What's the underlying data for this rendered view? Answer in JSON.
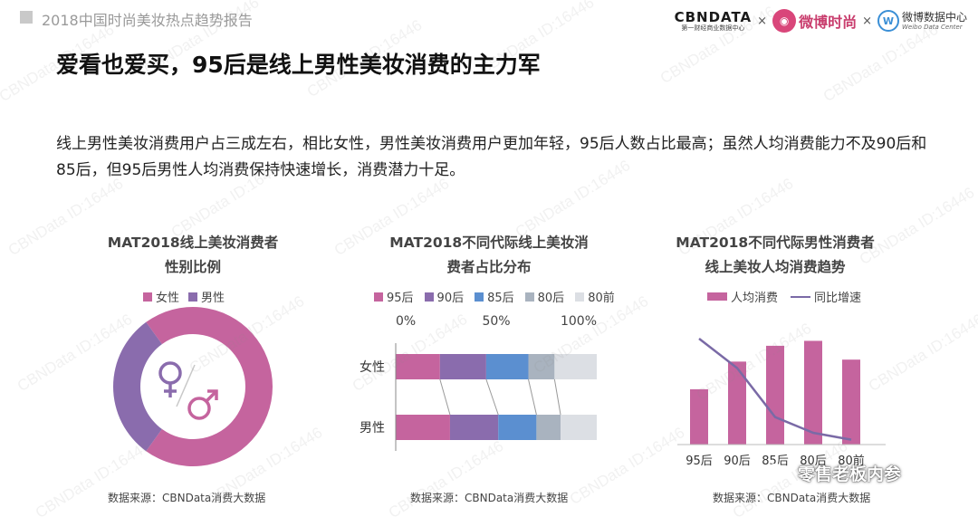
{
  "header": {
    "report_title": "2018中国时尚美妆热点趋势报告",
    "logo_cbn_main": "CBNDATA",
    "logo_cbn_sub": "第一财经商业数据中心",
    "logo_sep": "×",
    "logo_weibo_fashion": "微博时尚",
    "logo_weibo_data_main": "微博数据中心",
    "logo_weibo_data_sub": "Weibo Data Center"
  },
  "title": "爱看也爱买，95后是线上男性美妆消费的主力军",
  "summary": "线上男性美妆消费用户占三成左右，相比女性，男性美妆消费用户更加年轻，95后人数占比最高；虽然人均消费能力不及90后和85后，但95后男性人均消费保持快速增长，消费潜力十足。",
  "watermark_text": "CBNData ID:16446",
  "wechat_tag": "零售老板内参",
  "colors": {
    "female": "#c5649e",
    "male": "#8a6cad",
    "g95": "#c5649e",
    "g90": "#8a6cad",
    "g85": "#5b8fd0",
    "g80": "#a9b3bf",
    "g80before": "#dcdfe4",
    "bar": "#c5649e",
    "line": "#7a6aa6"
  },
  "chart_data": [
    {
      "type": "pie",
      "title_line1": "MAT2018线上美妆消费者",
      "title_line2": "性别比例",
      "legend": [
        "女性",
        "男性"
      ],
      "slices": [
        {
          "label": "女性",
          "value": 70
        },
        {
          "label": "男性",
          "value": 30
        }
      ],
      "source": "数据来源：CBNData消费大数据"
    },
    {
      "type": "bar",
      "title_line1": "MAT2018不同代际线上美妆消",
      "title_line2": "费者占比分布",
      "legend": [
        "95后",
        "90后",
        "85后",
        "80后",
        "80前"
      ],
      "axis_ticks": [
        "0%",
        "50%",
        "100%"
      ],
      "categories": [
        "女性",
        "男性"
      ],
      "series": [
        {
          "name": "95后",
          "values": [
            22,
            27
          ]
        },
        {
          "name": "90后",
          "values": [
            23,
            24
          ]
        },
        {
          "name": "85后",
          "values": [
            21,
            19
          ]
        },
        {
          "name": "80后",
          "values": [
            13,
            12
          ]
        },
        {
          "name": "80前",
          "values": [
            21,
            18
          ]
        }
      ],
      "source": "数据来源：CBNData消费大数据"
    },
    {
      "type": "bar",
      "title_line1": "MAT2018不同代际男性消费者",
      "title_line2": "线上美妆人均消费趋势",
      "legend": [
        "人均消费",
        "同比增速"
      ],
      "categories": [
        "95后",
        "90后",
        "85后",
        "80后",
        "80前"
      ],
      "series": [
        {
          "name": "人均消费",
          "values": [
            56,
            84,
            100,
            105,
            86
          ]
        },
        {
          "name": "同比增速",
          "values": [
            108,
            78,
            28,
            12,
            5
          ]
        }
      ],
      "source": "数据来源：CBNData消费大数据"
    }
  ]
}
